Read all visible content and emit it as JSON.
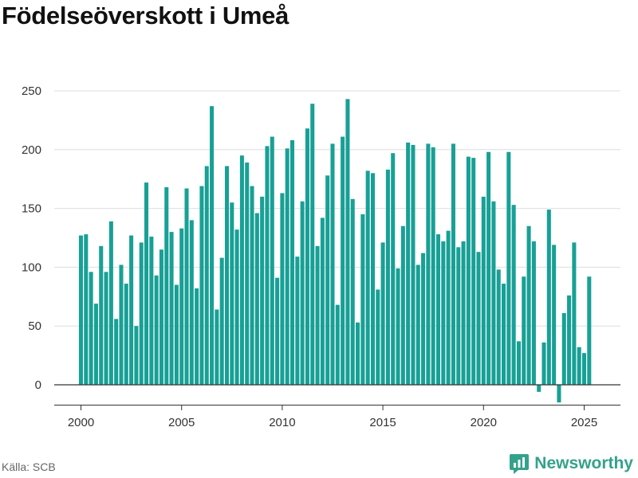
{
  "title": "Födelseöverskott i Umeå",
  "source": "Källa: SCB",
  "brand": {
    "name": "Newsworthy",
    "icon": "newsworthy-logo-icon",
    "color": "#34a28b"
  },
  "colors": {
    "bar": "#18a096",
    "grid": "#dedede",
    "zero": "#333333",
    "axis": "#333333"
  },
  "chart_data": {
    "type": "bar",
    "title": "Födelseöverskott i Umeå",
    "xlabel": "",
    "ylabel": "",
    "frequency": "quarterly",
    "x_start": "2000 Q1",
    "ylim": [
      -18,
      262
    ],
    "y_ticks": [
      0,
      50,
      100,
      150,
      200,
      250
    ],
    "x_ticks": [
      "2000",
      "2005",
      "2010",
      "2015",
      "2020",
      "2025"
    ],
    "grid": true,
    "values": [
      127,
      128,
      96,
      69,
      118,
      96,
      139,
      56,
      102,
      86,
      127,
      50,
      121,
      172,
      126,
      93,
      115,
      168,
      130,
      85,
      133,
      167,
      140,
      82,
      169,
      186,
      237,
      64,
      108,
      186,
      155,
      132,
      195,
      189,
      169,
      146,
      160,
      203,
      211,
      91,
      163,
      201,
      208,
      109,
      156,
      218,
      239,
      118,
      142,
      178,
      205,
      68,
      211,
      243,
      158,
      53,
      145,
      182,
      180,
      81,
      121,
      183,
      197,
      99,
      135,
      206,
      204,
      102,
      112,
      205,
      202,
      128,
      122,
      131,
      205,
      117,
      122,
      194,
      193,
      113,
      160,
      198,
      156,
      98,
      86,
      198,
      153,
      37,
      92,
      135,
      122,
      -6,
      36,
      149,
      119,
      -15,
      61,
      76,
      121,
      32,
      27,
      92
    ]
  }
}
